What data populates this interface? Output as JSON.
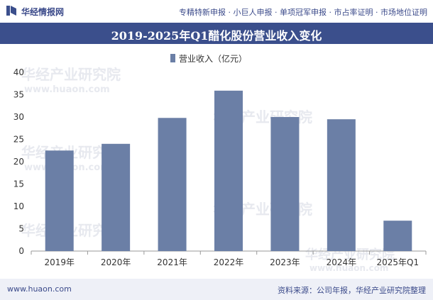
{
  "header": {
    "brand": "华经情报网",
    "services": "专精特新申报 · 小巨人申报 · 单项冠军申报 · 市占率证明 · 市场地位证明"
  },
  "footer": {
    "website": "www.huaon.com",
    "source": "资料来源：公司年报，华经产业研究院整理"
  },
  "watermark": {
    "line1": "华经产业研究院",
    "line2": "www.huaon.com"
  },
  "colors": {
    "bar": "#6b7fa6",
    "title_bg": "#3b4f8c",
    "brand": "#3b4a8a"
  },
  "chart_data": {
    "type": "bar",
    "title": "2019-2025年Q1醋化股份营业收入变化",
    "categories": [
      "2019年",
      "2020年",
      "2021年",
      "2022年",
      "2023年",
      "2024年",
      "2025年Q1"
    ],
    "series": [
      {
        "name": "营业收入（亿元）",
        "values": [
          22.5,
          24.0,
          29.8,
          35.9,
          30.0,
          29.5,
          6.8
        ]
      }
    ],
    "xlabel": "",
    "ylabel": "",
    "ylim": [
      0,
      40
    ],
    "yticks": [
      0,
      5,
      10,
      15,
      20,
      25,
      30,
      35,
      40
    ],
    "grid": false,
    "legend": "top-center"
  }
}
